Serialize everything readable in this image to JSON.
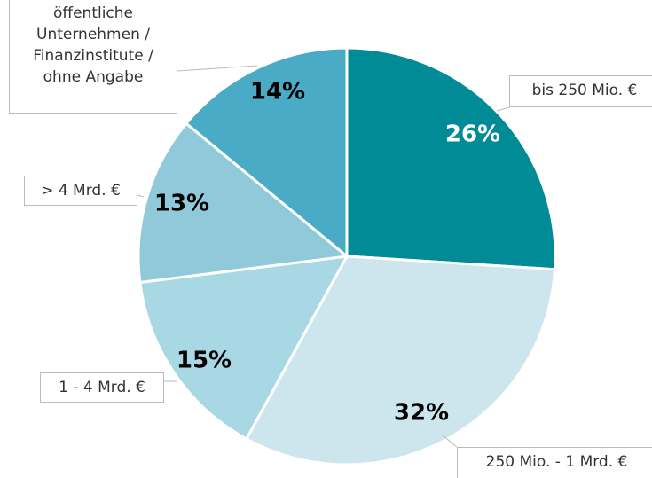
{
  "chart_data": {
    "type": "pie",
    "categories": [
      "bis 250 Mio. €",
      "250 Mio. - 1 Mrd. €",
      "1 - 4 Mrd. €",
      "> 4 Mrd. €",
      "öffentliche Unternehmen / Finanzinstitute / ohne Angabe"
    ],
    "values": [
      26,
      32,
      15,
      13,
      14
    ],
    "value_labels": [
      "26%",
      "32%",
      "15%",
      "13%",
      "14%"
    ],
    "colors": [
      "#008b96",
      "#cde6ee",
      "#a8d8e4",
      "#90cada",
      "#4aabc6"
    ]
  }
}
